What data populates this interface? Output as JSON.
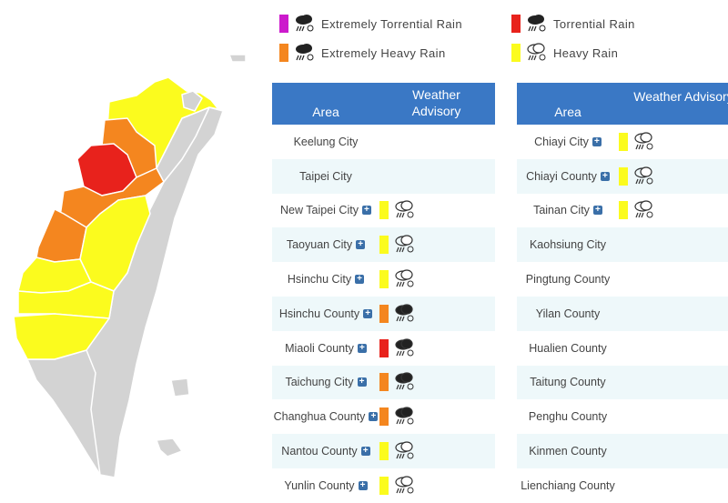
{
  "colors": {
    "extremely_torrential": "#cc1acc",
    "torrential": "#e8221c",
    "extremely_heavy": "#f4861f",
    "heavy": "#fbfb1e",
    "header_bg": "#3a78c5",
    "none_gray": "#d3d3d3"
  },
  "legend": [
    {
      "label": "Extremely Torrential Rain",
      "level": "extremely_torrential",
      "icon": "torrential-rain-icon"
    },
    {
      "label": "Torrential Rain",
      "level": "torrential",
      "icon": "dark-rain-icon"
    },
    {
      "label": "Extremely Heavy Rain",
      "level": "extremely_heavy",
      "icon": "dark-rain-icon"
    },
    {
      "label": "Heavy Rain",
      "level": "heavy",
      "icon": "light-rain-icon"
    }
  ],
  "table_left": {
    "header_area": "Area",
    "header_advisory": "Weather Advisory",
    "rows": [
      {
        "area": "Keelung City",
        "has_plus": false,
        "level": ""
      },
      {
        "area": "Taipei City",
        "has_plus": false,
        "level": ""
      },
      {
        "area": "New Taipei City",
        "has_plus": true,
        "level": "heavy"
      },
      {
        "area": "Taoyuan City",
        "has_plus": true,
        "level": "heavy"
      },
      {
        "area": "Hsinchu City",
        "has_plus": true,
        "level": "heavy"
      },
      {
        "area": "Hsinchu County",
        "has_plus": true,
        "level": "extremely_heavy"
      },
      {
        "area": "Miaoli County",
        "has_plus": true,
        "level": "torrential"
      },
      {
        "area": "Taichung City",
        "has_plus": true,
        "level": "extremely_heavy"
      },
      {
        "area": "Changhua County",
        "has_plus": true,
        "level": "extremely_heavy"
      },
      {
        "area": "Nantou County",
        "has_plus": true,
        "level": "heavy"
      },
      {
        "area": "Yunlin County",
        "has_plus": true,
        "level": "heavy"
      }
    ]
  },
  "table_right": {
    "header_area": "Area",
    "header_advisory": "Weather Advisory",
    "rows": [
      {
        "area": "Chiayi City",
        "has_plus": true,
        "level": "heavy"
      },
      {
        "area": "Chiayi County",
        "has_plus": true,
        "level": "heavy"
      },
      {
        "area": "Tainan City",
        "has_plus": true,
        "level": "heavy"
      },
      {
        "area": "Kaohsiung City",
        "has_plus": false,
        "level": ""
      },
      {
        "area": "Pingtung County",
        "has_plus": false,
        "level": ""
      },
      {
        "area": "Yilan County",
        "has_plus": false,
        "level": ""
      },
      {
        "area": "Hualien County",
        "has_plus": false,
        "level": ""
      },
      {
        "area": "Taitung County",
        "has_plus": false,
        "level": ""
      },
      {
        "area": "Penghu County",
        "has_plus": false,
        "level": ""
      },
      {
        "area": "Kinmen County",
        "has_plus": false,
        "level": ""
      },
      {
        "area": "Lienchiang County",
        "has_plus": false,
        "level": ""
      }
    ]
  }
}
